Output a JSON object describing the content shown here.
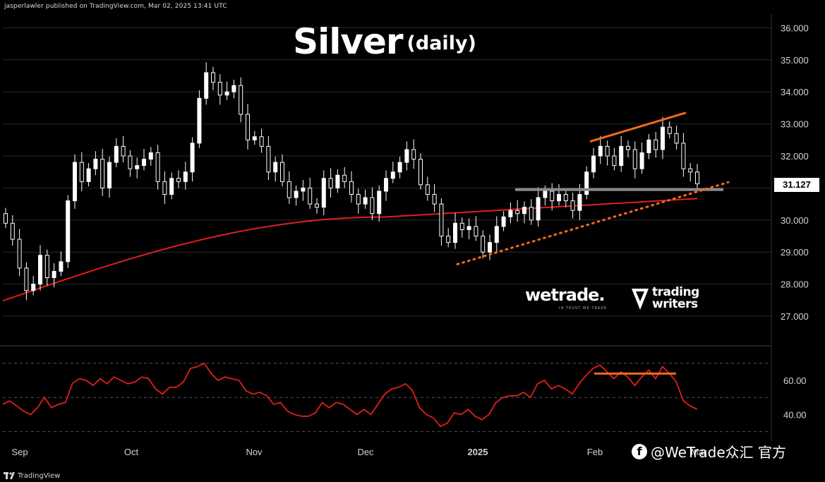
{
  "header": "jasperlawler published on TradingView.com, Mar 02, 2025 13:41 UTC",
  "title": {
    "main": "Silver",
    "sub": "(daily)"
  },
  "footer": {
    "brand": "TradingView"
  },
  "watermark": "@WeTrade众汇 官方",
  "logos": {
    "wetrade": "wetrade.",
    "wetrade_tagline": "IN TRUST WE TRADE",
    "trading_writers": [
      "trading",
      "writers"
    ]
  },
  "colors": {
    "up": "#ffffff",
    "down": "#ffffff",
    "ma": "#e01e1e",
    "rsi": "#e01e1e",
    "trendline": "#f36a1b",
    "support": "#8a8a8a",
    "grid": "#2a2a2a"
  },
  "chart_data": [
    {
      "type": "candlestick",
      "title": "Silver (daily)",
      "y_axis": {
        "ticks": [
          "27.000",
          "28.000",
          "29.000",
          "30.000",
          "31.000",
          "32.000",
          "33.000",
          "34.000",
          "35.000",
          "36.000"
        ],
        "range": [
          26.4,
          36.5
        ]
      },
      "x_axis": {
        "labels": [
          "Sep",
          "Oct",
          "Nov",
          "Dec",
          "2025",
          "Feb",
          "Mar"
        ]
      },
      "last_price": "31.127",
      "closes": [
        29.9,
        29.4,
        28.5,
        27.8,
        28.0,
        28.9,
        28.2,
        28.4,
        28.7,
        30.6,
        31.8,
        31.2,
        31.6,
        31.9,
        31.0,
        31.8,
        32.3,
        32.0,
        31.6,
        31.7,
        31.9,
        32.1,
        31.2,
        30.8,
        31.3,
        31.2,
        31.5,
        32.4,
        33.8,
        34.6,
        34.3,
        33.9,
        34.0,
        34.2,
        33.3,
        32.5,
        32.6,
        32.3,
        31.5,
        31.8,
        31.2,
        30.7,
        30.9,
        31.0,
        30.5,
        30.4,
        31.3,
        31.0,
        31.4,
        31.2,
        30.8,
        30.5,
        30.7,
        30.2,
        30.9,
        31.3,
        31.5,
        31.8,
        32.2,
        31.9,
        31.1,
        30.8,
        30.5,
        29.5,
        29.3,
        29.9,
        29.7,
        29.8,
        29.5,
        29.0,
        29.3,
        29.8,
        30.1,
        30.3,
        30.2,
        30.4,
        30.0,
        30.7,
        30.9,
        30.6,
        30.8,
        30.6,
        30.3,
        30.8,
        31.5,
        32.0,
        32.3,
        32.0,
        31.7,
        32.3,
        32.2,
        31.6,
        32.1,
        32.5,
        32.2,
        32.9,
        32.7,
        32.4,
        31.6,
        31.5,
        31.13
      ],
      "moving_average": {
        "start": 27.48,
        "end": 30.67
      },
      "annotations": {
        "support_level": 30.95,
        "rising_trendline": {
          "from": [
            0.42,
            28.62
          ],
          "to": [
            1.0,
            31.18
          ]
        },
        "resistance_trendline": {
          "from": [
            0.88,
            32.45
          ],
          "to": [
            0.93,
            33.35
          ]
        }
      }
    },
    {
      "type": "line",
      "title": "RSI",
      "y_axis": {
        "ticks": [
          "40.00",
          "60.00"
        ],
        "levels": [
          30,
          50,
          70
        ],
        "range": [
          27,
          72
        ]
      },
      "values": [
        46,
        48,
        45,
        42,
        40,
        44,
        50,
        44,
        46,
        47,
        58,
        61,
        60,
        57,
        61,
        58,
        62,
        60,
        58,
        59,
        62,
        61,
        55,
        52,
        56,
        56,
        59,
        67,
        68,
        70,
        64,
        60,
        62,
        61,
        60,
        54,
        52,
        53,
        51,
        46,
        47,
        42,
        40,
        39,
        39,
        41,
        47,
        44,
        47,
        46,
        43,
        40,
        43,
        40,
        46,
        52,
        55,
        56,
        58,
        54,
        44,
        40,
        38,
        33,
        35,
        41,
        40,
        43,
        39,
        37,
        40,
        47,
        50,
        51,
        51,
        53,
        50,
        58,
        60,
        55,
        57,
        55,
        52,
        58,
        63,
        67,
        69,
        65,
        61,
        65,
        62,
        57,
        62,
        66,
        61,
        68,
        64,
        59,
        48,
        45,
        43
      ],
      "annotations": {
        "bearish_divergence_line": 64
      }
    }
  ]
}
